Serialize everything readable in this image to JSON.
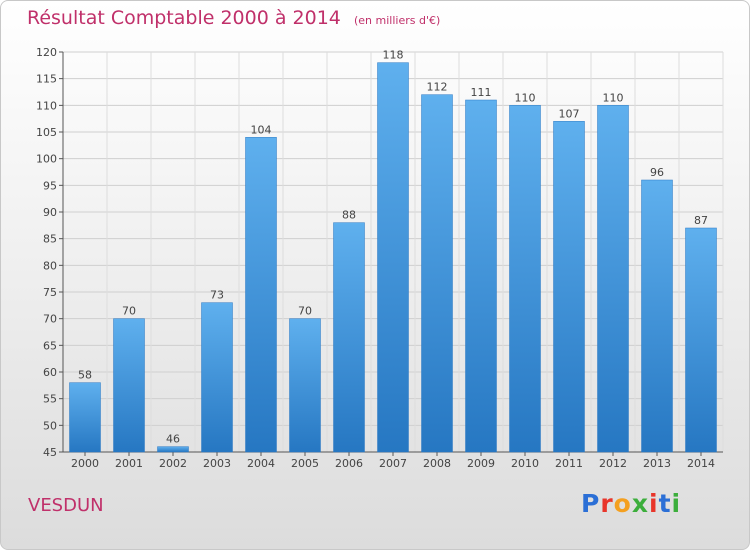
{
  "header": {
    "title": "Résultat Comptable 2000 à 2014",
    "unit": "(en milliers d'€)"
  },
  "commune": "VESDUN",
  "logo": {
    "letters": [
      "P",
      "r",
      "o",
      "x",
      "i",
      "t",
      "i"
    ],
    "colors": [
      "#2b6fd6",
      "#e8352a",
      "#f4a020",
      "#3cae3c",
      "#e8352a",
      "#2b6fd6",
      "#3cae3c"
    ]
  },
  "chart_data": {
    "type": "bar",
    "title": "Résultat Comptable 2000 à 2014",
    "categories": [
      "2000",
      "2001",
      "2002",
      "2003",
      "2004",
      "2005",
      "2006",
      "2007",
      "2008",
      "2009",
      "2010",
      "2011",
      "2012",
      "2013",
      "2014"
    ],
    "values": [
      58,
      70,
      46,
      73,
      104,
      70,
      88,
      118,
      112,
      111,
      110,
      107,
      110,
      96,
      87
    ],
    "ylim": [
      45,
      120
    ],
    "yticks": [
      45,
      50,
      55,
      60,
      65,
      70,
      75,
      80,
      85,
      90,
      95,
      100,
      105,
      110,
      115,
      120
    ],
    "grid": true,
    "bar_color": "#3a8fd8"
  }
}
